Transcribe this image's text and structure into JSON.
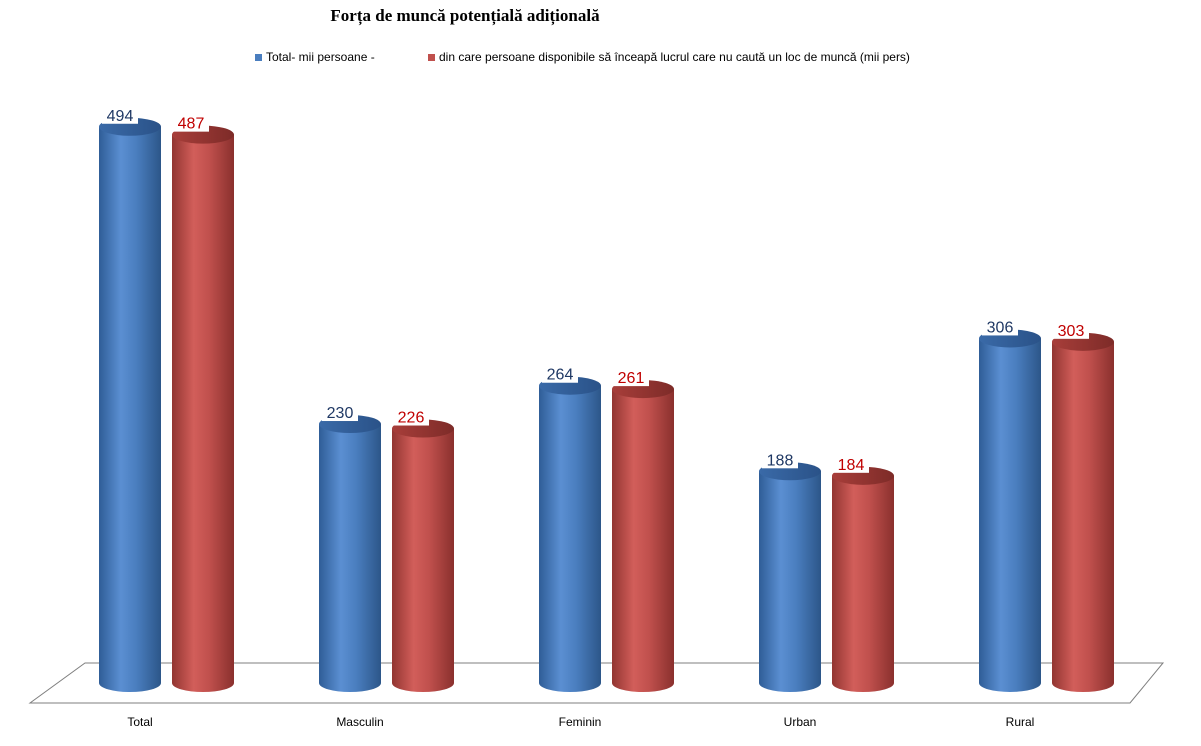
{
  "chart_data": {
    "type": "bar",
    "title": "Forța de muncă potențială adițională",
    "categories": [
      "Total",
      "Masculin",
      "Feminin",
      "Urban",
      "Rural"
    ],
    "series": [
      {
        "name": "Total- mii persoane -",
        "values": [
          494,
          230,
          264,
          188,
          306
        ],
        "color": "#4a7ebf",
        "label_color": "#1f3864"
      },
      {
        "name": "din  care persoane disponibile să înceapă lucrul care nu caută un loc de muncă (mii pers)",
        "values": [
          487,
          226,
          261,
          184,
          303
        ],
        "color": "#c0504d",
        "label_color": "#c00000"
      }
    ],
    "ylim": [
      0,
      500
    ],
    "grid": false,
    "legend_position": "top",
    "style": "3d-cylinder"
  }
}
